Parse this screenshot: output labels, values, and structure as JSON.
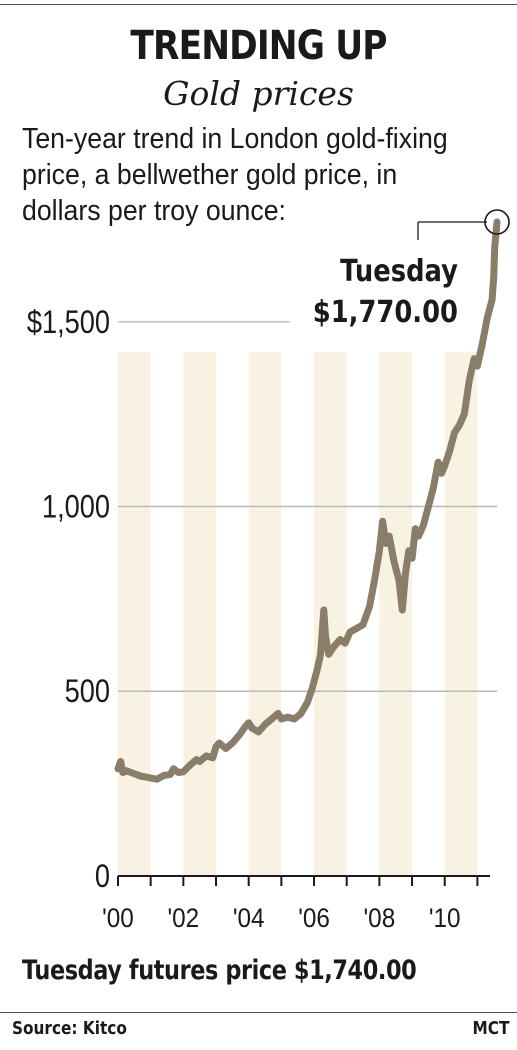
{
  "header": {
    "title": "TRENDING UP",
    "subtitle": "Gold prices",
    "description": "Ten-year trend in London gold-fixing price, a bellwether gold price, in dollars per troy ounce:"
  },
  "annotation": {
    "label": "Tuesday",
    "value": "$1,770.00"
  },
  "footer": {
    "futures_note": "Tuesday futures price $1,740.00",
    "source": "Source: Kitco",
    "credit": "MCT"
  },
  "colors": {
    "line": "#8a7d6a",
    "band": "#f7f2e2",
    "grid": "#b8b8b8",
    "axis": "#1a1a1a"
  },
  "chart_data": {
    "type": "line",
    "title": "",
    "xlabel": "",
    "ylabel": "",
    "xlim": [
      2000.0,
      2011.6
    ],
    "ylim": [
      0,
      1770
    ],
    "y_ticks": [
      0,
      500,
      1000,
      1500
    ],
    "y_tick_labels": [
      "0",
      "500",
      "1,000",
      "$1,500"
    ],
    "x_ticks": [
      2000,
      2002,
      2004,
      2006,
      2008,
      2010
    ],
    "x_tick_labels": [
      "'00",
      "'02",
      "'04",
      "'06",
      "'08",
      "'10"
    ],
    "grid": "horizontal",
    "shaded_bands": [
      [
        2000,
        2001
      ],
      [
        2002,
        2003
      ],
      [
        2004,
        2005
      ],
      [
        2006,
        2007
      ],
      [
        2008,
        2009
      ],
      [
        2010,
        2011
      ]
    ],
    "series": [
      {
        "x": [
          2000.0,
          2000.08,
          2000.15,
          2000.25,
          2000.4,
          2000.55,
          2000.7,
          2000.85,
          2001.0,
          2001.2,
          2001.4,
          2001.6,
          2001.7,
          2001.85,
          2002.0,
          2002.2,
          2002.4,
          2002.5,
          2002.7,
          2002.9,
          2003.0,
          2003.1,
          2003.3,
          2003.5,
          2003.7,
          2003.9,
          2004.0,
          2004.1,
          2004.3,
          2004.5,
          2004.7,
          2004.9,
          2005.0,
          2005.2,
          2005.4,
          2005.6,
          2005.8,
          2005.95,
          2006.1,
          2006.2,
          2006.3,
          2006.35,
          2006.45,
          2006.6,
          2006.8,
          2006.95,
          2007.1,
          2007.3,
          2007.5,
          2007.7,
          2007.85,
          2008.0,
          2008.1,
          2008.2,
          2008.3,
          2008.45,
          2008.6,
          2008.7,
          2008.8,
          2008.9,
          2009.0,
          2009.1,
          2009.2,
          2009.35,
          2009.5,
          2009.65,
          2009.8,
          2009.9,
          2010.0,
          2010.15,
          2010.3,
          2010.45,
          2010.6,
          2010.75,
          2010.9,
          2011.0,
          2011.15,
          2011.3,
          2011.45,
          2011.5,
          2011.53,
          2011.57,
          2011.6
        ],
        "y": [
          290,
          310,
          280,
          285,
          280,
          275,
          270,
          268,
          265,
          262,
          272,
          275,
          290,
          280,
          282,
          300,
          315,
          310,
          325,
          320,
          350,
          360,
          345,
          360,
          380,
          405,
          415,
          400,
          390,
          410,
          425,
          440,
          425,
          430,
          425,
          440,
          470,
          510,
          560,
          600,
          720,
          650,
          600,
          620,
          640,
          630,
          660,
          670,
          680,
          730,
          800,
          880,
          960,
          900,
          920,
          850,
          800,
          720,
          820,
          880,
          860,
          940,
          920,
          950,
          1000,
          1050,
          1120,
          1090,
          1110,
          1150,
          1200,
          1220,
          1250,
          1340,
          1400,
          1380,
          1440,
          1510,
          1560,
          1620,
          1700,
          1740,
          1770
        ]
      }
    ]
  }
}
